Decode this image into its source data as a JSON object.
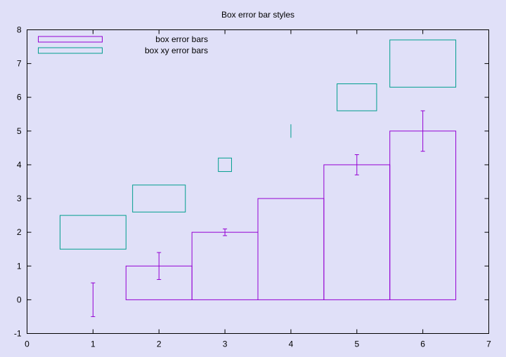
{
  "chart_data": {
    "type": "bar",
    "title": "Box error bar styles",
    "xlabel": "",
    "ylabel": "",
    "xlim": [
      0,
      7
    ],
    "ylim": [
      -1,
      8
    ],
    "xticks": [
      0,
      1,
      2,
      3,
      4,
      5,
      6,
      7
    ],
    "yticks": [
      -1,
      0,
      1,
      2,
      3,
      4,
      5,
      6,
      7,
      8
    ],
    "grid": false,
    "legend_position": "top-left",
    "series": [
      {
        "name": "box error bars",
        "style": "boxerrorbars",
        "color": "#9400d3",
        "points": [
          {
            "x": 1,
            "y": 0,
            "xlow": 0.5,
            "xhigh": 1.5,
            "ylow": -0.5,
            "yhigh": 0.5
          },
          {
            "x": 2,
            "y": 1,
            "xlow": 1.5,
            "xhigh": 2.5,
            "ylow": 0.6,
            "yhigh": 1.4
          },
          {
            "x": 3,
            "y": 2,
            "xlow": 2.5,
            "xhigh": 3.5,
            "ylow": 1.9,
            "yhigh": 2.1
          },
          {
            "x": 4,
            "y": 3,
            "xlow": 3.5,
            "xhigh": 4.5,
            "ylow": 3.0,
            "yhigh": 3.0
          },
          {
            "x": 5,
            "y": 4,
            "xlow": 4.5,
            "xhigh": 5.5,
            "ylow": 3.7,
            "yhigh": 4.3
          },
          {
            "x": 6,
            "y": 5,
            "xlow": 5.5,
            "xhigh": 6.5,
            "ylow": 4.4,
            "yhigh": 5.6
          }
        ]
      },
      {
        "name": "box xy error bars",
        "style": "boxxyerror",
        "color": "#009e8e",
        "points": [
          {
            "x": 1,
            "y": 2,
            "xlow": 0.5,
            "xhigh": 1.5,
            "ylow": 1.5,
            "yhigh": 2.5
          },
          {
            "x": 2,
            "y": 3,
            "xlow": 1.6,
            "xhigh": 2.4,
            "ylow": 2.6,
            "yhigh": 3.4
          },
          {
            "x": 3,
            "y": 4,
            "xlow": 2.9,
            "xhigh": 3.1,
            "ylow": 3.8,
            "yhigh": 4.2
          },
          {
            "x": 4,
            "y": 5,
            "xlow": 4.0,
            "xhigh": 4.0,
            "ylow": 4.8,
            "yhigh": 5.2
          },
          {
            "x": 5,
            "y": 6,
            "xlow": 4.7,
            "xhigh": 5.3,
            "ylow": 5.6,
            "yhigh": 6.4
          },
          {
            "x": 6,
            "y": 7,
            "xlow": 5.5,
            "xhigh": 6.5,
            "ylow": 6.3,
            "yhigh": 7.7
          }
        ]
      }
    ]
  }
}
